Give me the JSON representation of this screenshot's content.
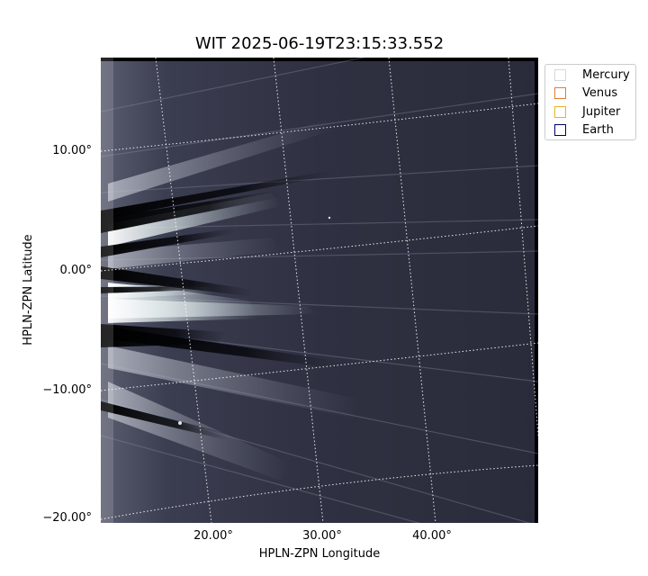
{
  "title": "WIT 2025-06-19T23:15:33.552",
  "axes": {
    "xlabel": "HPLN-ZPN Longitude",
    "ylabel": "HPLN-ZPN Latitude",
    "x_ticks": [
      "20.00°",
      "30.00°",
      "40.00°"
    ],
    "y_ticks": [
      "10.00°",
      "0.00°",
      "−10.00°",
      "−20.00°"
    ]
  },
  "legend": [
    {
      "label": "Mercury",
      "color": "#d9d9d9"
    },
    {
      "label": "Venus",
      "color": "#e07b39"
    },
    {
      "label": "Jupiter",
      "color": "#e6b422"
    },
    {
      "label": "Earth",
      "color": "#000066"
    }
  ],
  "image": {
    "description_colormap": "bone",
    "background_color": "#2a2b3a"
  }
}
